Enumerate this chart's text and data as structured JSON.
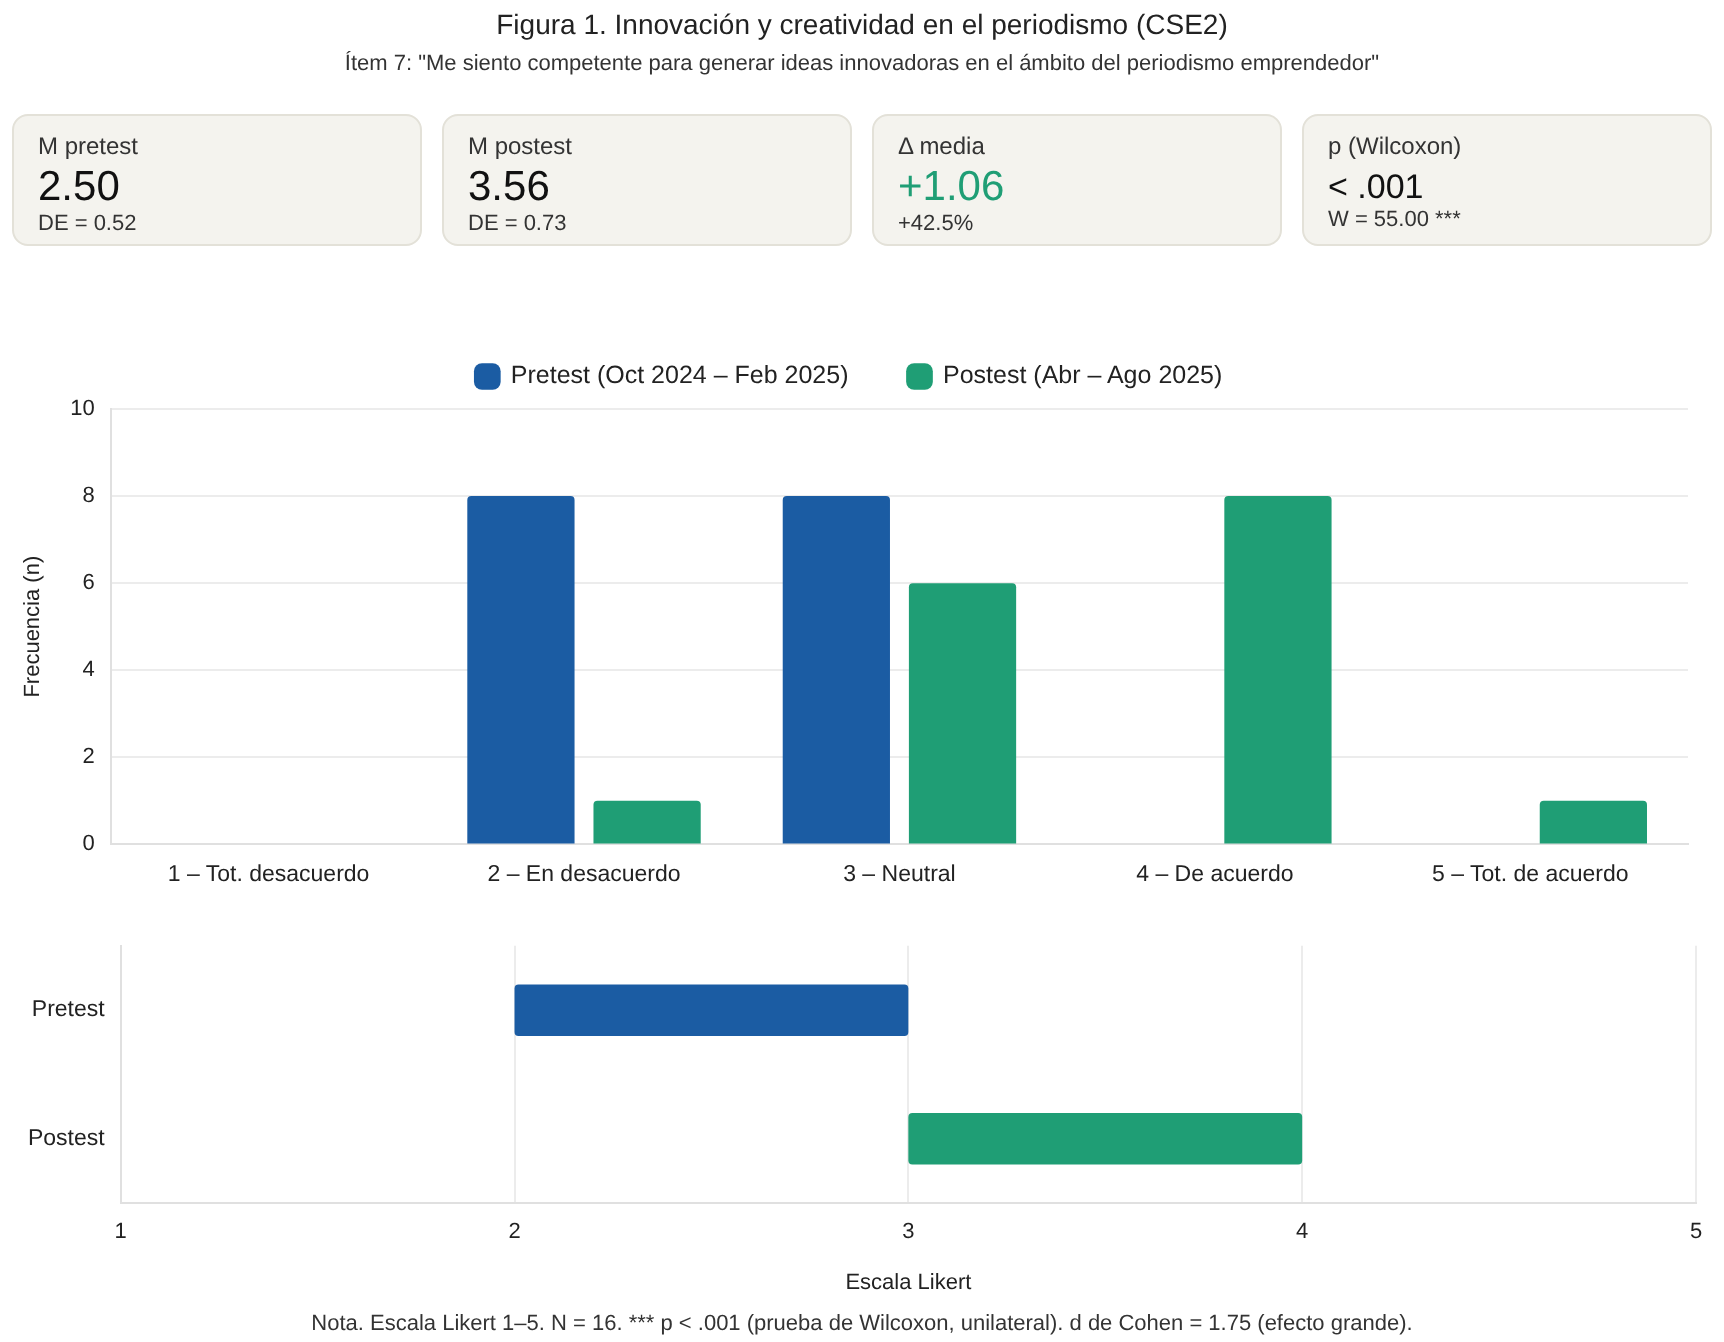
{
  "chart_data": [
    {
      "type": "other",
      "title": "Figura 1. Innovación y creatividad en el periodismo (CSE2)",
      "subtitle": "Ítem 7: \"Me siento competente para generar ideas innovadoras en el ámbito del periodismo emprendedor\"",
      "annotations": [
        "M pretest",
        "2.50",
        "DE = 0.52",
        "M postest",
        "3.56",
        "DE = 0.73",
        "Δ media",
        "+1.06",
        "+42.5%",
        "p (Wilcoxon)",
        "< .001",
        "W = 55.00 ***"
      ]
    },
    {
      "type": "bar",
      "categories": [
        "1 – Tot. desacuerdo",
        "2 – En desacuerdo",
        "3 – Neutral",
        "4 – De acuerdo",
        "5 – Tot. de acuerdo"
      ],
      "ylabel": "Frecuencia (n)",
      "ylim": [
        0,
        10
      ],
      "yticks": [
        0,
        2,
        4,
        6,
        8,
        10
      ],
      "grid": "y",
      "legend": "top",
      "series": [
        {
          "name": "Pretest (Oct 2024 – Feb 2025)",
          "color": "#1b5ca3",
          "values": [
            0,
            8,
            8,
            0,
            0
          ]
        },
        {
          "name": "Postest (Abr – Ago 2025)",
          "color": "#1f9e75",
          "values": [
            0,
            1,
            6,
            8,
            1
          ]
        }
      ]
    },
    {
      "type": "bar",
      "orientation": "horizontal",
      "categories": [
        "Pretest",
        "Postest"
      ],
      "base": [
        2,
        3
      ],
      "values": [
        1,
        1
      ],
      "colors": [
        "#1b5ca3",
        "#1f9e75"
      ],
      "xlim": [
        1,
        5
      ],
      "xticks": [
        1,
        2,
        3,
        4,
        5
      ],
      "xlabel": "Escala Likert",
      "grid": "x",
      "annotations": [
        "Nota. Escala Likert 1–5. N = 16. *** p < .001 (prueba de Wilcoxon, unilateral). d de Cohen = 1.75 (efecto grande)."
      ]
    }
  ]
}
